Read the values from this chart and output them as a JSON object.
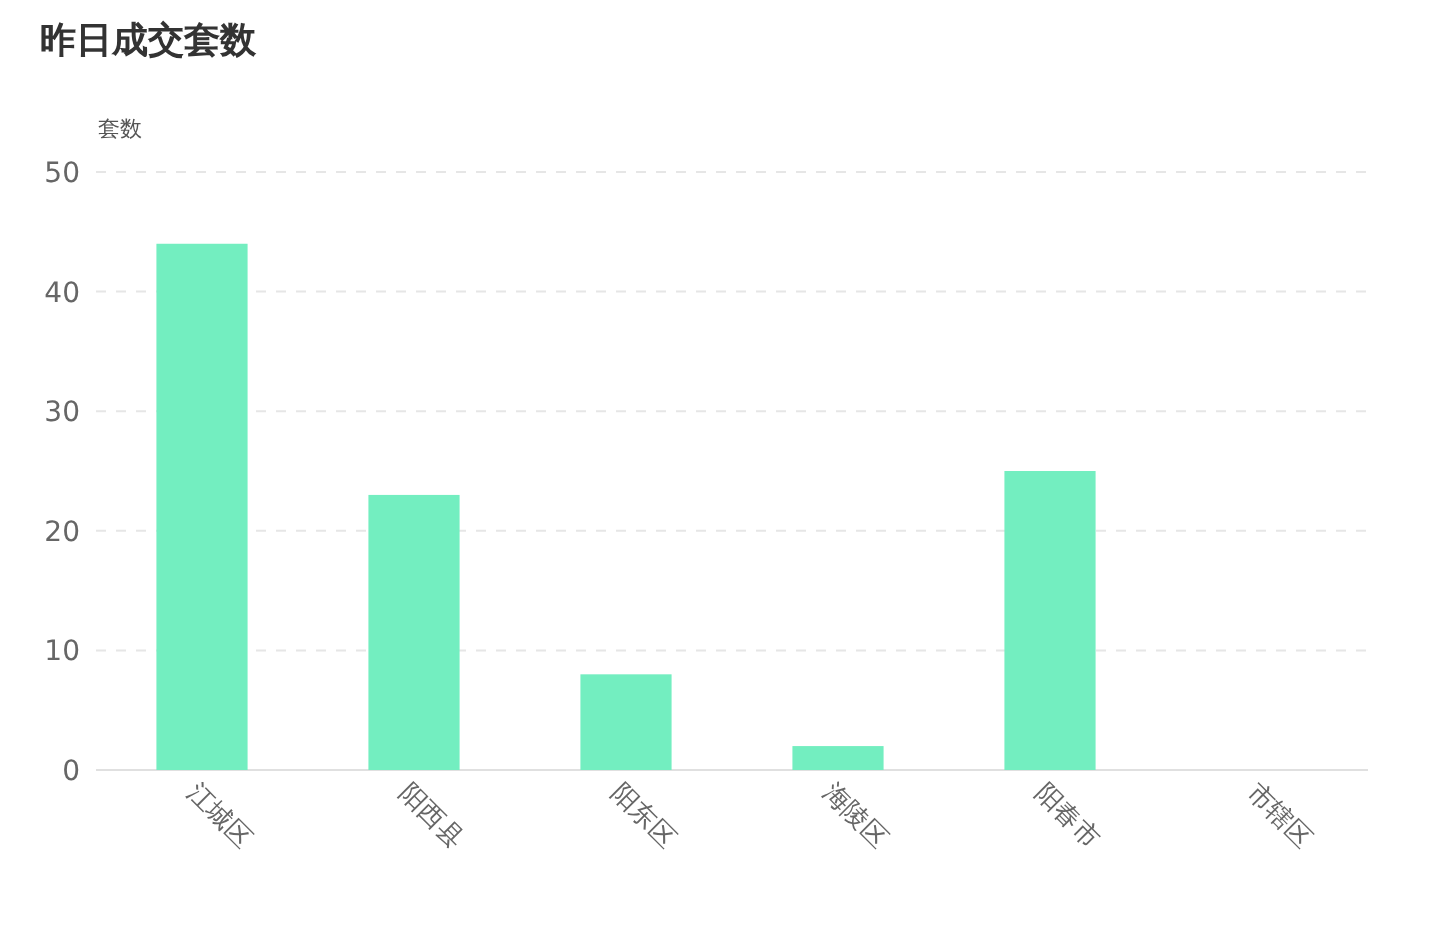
{
  "chart_data": {
    "type": "bar",
    "title": "昨日成交套数",
    "ylabel": "套数",
    "categories": [
      "江城区",
      "阳西县",
      "阳东区",
      "海陵区",
      "阳春市",
      "市辖区"
    ],
    "values": [
      44,
      23,
      8,
      2,
      25,
      0
    ],
    "color": "#73eec0",
    "ylim": [
      0,
      50
    ],
    "yticks": [
      0,
      10,
      20,
      30,
      40,
      50
    ],
    "grid": "y"
  }
}
